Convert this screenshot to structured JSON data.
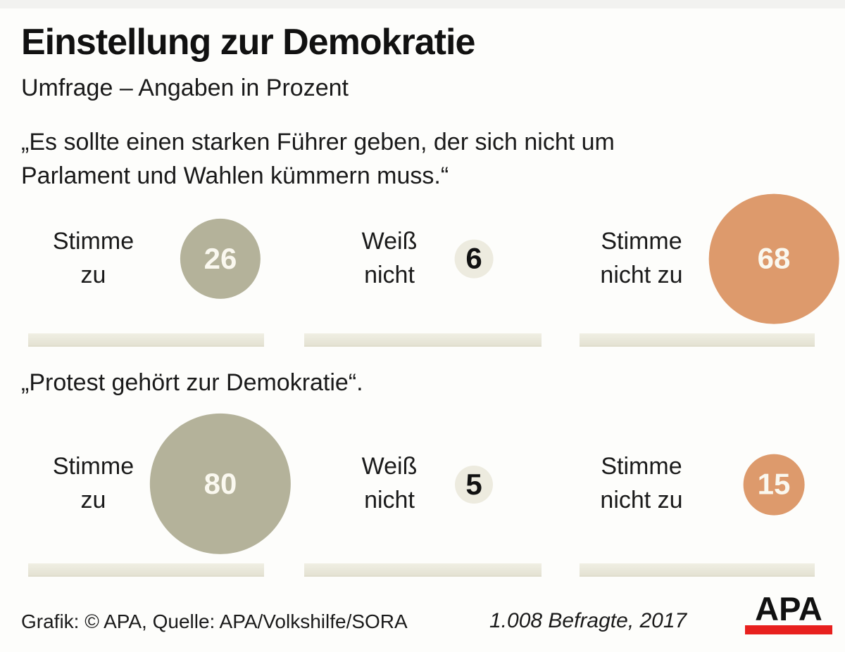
{
  "header": {
    "title": "Einstellung zur Demokratie",
    "subtitle": "Umfrage – Angaben in Prozent"
  },
  "chart_data": {
    "type": "bubble",
    "unit": "Prozent",
    "title": "Einstellung zur Demokratie",
    "subtitle": "Umfrage – Angaben in Prozent",
    "categories": [
      "Stimme zu",
      "Weiß nicht",
      "Stimme nicht zu"
    ],
    "colors": {
      "stimme_zu": "#b4b29a",
      "weiss_nicht": "#edebdf",
      "stimme_nicht_zu": "#dd9a6c"
    },
    "size_rule": "circle area proportional to value",
    "rows": [
      {
        "question": "„Es sollte einen starken Führer geben, der sich nicht um\nParlament und Wahlen kümmern muss.“",
        "cells": [
          {
            "label": "Stimme\nzu",
            "value": 26,
            "color_key": "stimme_zu"
          },
          {
            "label": "Weiß\nnicht",
            "value": 6,
            "color_key": "weiss_nicht"
          },
          {
            "label": "Stimme\nnicht zu",
            "value": 68,
            "color_key": "stimme_nicht_zu"
          }
        ]
      },
      {
        "question": "„Protest gehört zur Demokratie“.",
        "cells": [
          {
            "label": "Stimme\nzu",
            "value": 80,
            "color_key": "stimme_zu"
          },
          {
            "label": "Weiß\nnicht",
            "value": 5,
            "color_key": "weiss_nicht"
          },
          {
            "label": "Stimme\nnicht zu",
            "value": 15,
            "color_key": "stimme_nicht_zu"
          }
        ]
      }
    ]
  },
  "footer": {
    "credit": "Grafik: © APA, Quelle: APA/Volkshilfe/SORA",
    "sample": "1.008 Befragte, 2017",
    "logo_text": "APA",
    "logo_bar_color": "#e8201e"
  }
}
